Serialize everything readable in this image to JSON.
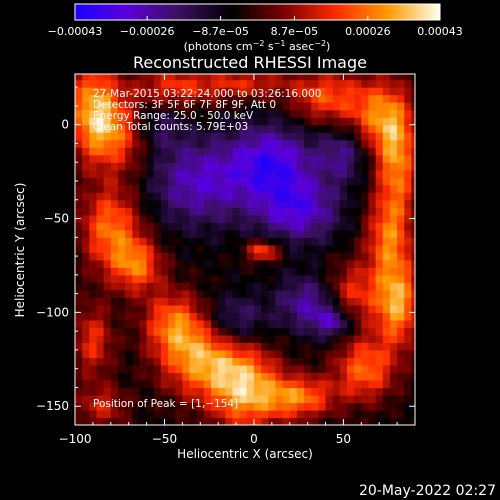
{
  "chart_data": {
    "type": "heatmap",
    "title": "Reconstructed RHESSI Image",
    "xlabel": "Heliocentric X (arcsec)",
    "ylabel": "Heliocentric Y (arcsec)",
    "xlim": [
      -100,
      90
    ],
    "ylim": [
      -160,
      27
    ],
    "xticks": [
      -100,
      -50,
      0,
      50
    ],
    "xtick_labels": [
      "−100",
      "−50",
      "0",
      "50"
    ],
    "yticks": [
      -150,
      -100,
      -50,
      0
    ],
    "ytick_labels": [
      "−150",
      "−100",
      "−50",
      "0"
    ],
    "colorbar": {
      "range": [
        -0.00043,
        0.00043
      ],
      "ticks": [
        -0.00043,
        -0.00026,
        -8.7e-05,
        8.7e-05,
        0.00026,
        0.00043
      ],
      "tick_labels": [
        "−0.00043",
        "−0.00026",
        "−8.7e−05",
        "8.7e−05",
        "0.00026",
        "0.00043"
      ],
      "unit_prefix": "(photons cm",
      "unit_mid": " s",
      "unit_mid2": " asec",
      "unit_suffix": ")",
      "sup1": "−2",
      "sup2": "−1",
      "sup3": "−2",
      "colors": [
        "#1a00ff",
        "#5a00d8",
        "#3a1060",
        "#000000",
        "#7a0000",
        "#ff2a00",
        "#ff9a00",
        "#ffffee"
      ]
    },
    "info_lines": [
      "27-Mar-2015 03:22:24.000 to 03:26:16.000",
      "Detectors: 3F 5F 6F 7F 8F 9F, Att 0",
      "Energy Range: 25.0 - 50.0 keV",
      "Clean    Total counts: 5.79E+03"
    ],
    "peak_label": "Position of Peak = [1,−154]",
    "peak_position": [
      1,
      -154
    ],
    "blobs": [
      {
        "x": -90,
        "y": 10,
        "v": 0.9,
        "sx": 10,
        "sy": 18
      },
      {
        "x": -75,
        "y": -5,
        "v": 0.7,
        "sx": 14,
        "sy": 14
      },
      {
        "x": -45,
        "y": 20,
        "v": 0.6,
        "sx": 16,
        "sy": 8
      },
      {
        "x": -5,
        "y": 22,
        "v": 0.55,
        "sx": 18,
        "sy": 6
      },
      {
        "x": 40,
        "y": 15,
        "v": 0.7,
        "sx": 14,
        "sy": 10
      },
      {
        "x": 70,
        "y": 5,
        "v": 0.8,
        "sx": 12,
        "sy": 14
      },
      {
        "x": 80,
        "y": -20,
        "v": 0.85,
        "sx": 8,
        "sy": 20
      },
      {
        "x": 75,
        "y": -60,
        "v": 0.75,
        "sx": 9,
        "sy": 16
      },
      {
        "x": 80,
        "y": -95,
        "v": 1.0,
        "sx": 9,
        "sy": 16
      },
      {
        "x": 55,
        "y": -90,
        "v": 0.6,
        "sx": 10,
        "sy": 12
      },
      {
        "x": 62,
        "y": -130,
        "v": 0.8,
        "sx": 12,
        "sy": 12
      },
      {
        "x": 25,
        "y": -145,
        "v": 0.85,
        "sx": 14,
        "sy": 8
      },
      {
        "x": -5,
        "y": -140,
        "v": 1.0,
        "sx": 14,
        "sy": 16
      },
      {
        "x": -30,
        "y": -125,
        "v": 0.9,
        "sx": 16,
        "sy": 14
      },
      {
        "x": -45,
        "y": -105,
        "v": 0.75,
        "sx": 12,
        "sy": 12
      },
      {
        "x": -80,
        "y": -55,
        "v": 0.85,
        "sx": 12,
        "sy": 16
      },
      {
        "x": -65,
        "y": -75,
        "v": 0.75,
        "sx": 10,
        "sy": 10
      },
      {
        "x": -90,
        "y": -115,
        "v": 0.6,
        "sx": 8,
        "sy": 14
      },
      {
        "x": -85,
        "y": -150,
        "v": 0.5,
        "sx": 10,
        "sy": 8
      },
      {
        "x": 5,
        "y": -67,
        "v": 0.75,
        "sx": 7,
        "sy": 4
      },
      {
        "x": -30,
        "y": -30,
        "v": -0.65,
        "sx": 20,
        "sy": 16
      },
      {
        "x": 10,
        "y": -20,
        "v": -0.8,
        "sx": 16,
        "sy": 14
      },
      {
        "x": 25,
        "y": -45,
        "v": -0.7,
        "sx": 16,
        "sy": 12
      },
      {
        "x": 30,
        "y": -95,
        "v": -0.55,
        "sx": 12,
        "sy": 10
      },
      {
        "x": 45,
        "y": -105,
        "v": -0.6,
        "sx": 8,
        "sy": 6
      },
      {
        "x": -10,
        "y": -105,
        "v": -0.5,
        "sx": 12,
        "sy": 10
      },
      {
        "x": -55,
        "y": 0,
        "v": -0.45,
        "sx": 10,
        "sy": 10
      },
      {
        "x": 50,
        "y": -15,
        "v": -0.5,
        "sx": 10,
        "sy": 10
      }
    ]
  },
  "footer": {
    "timestamp": "20-May-2022 02:27"
  }
}
